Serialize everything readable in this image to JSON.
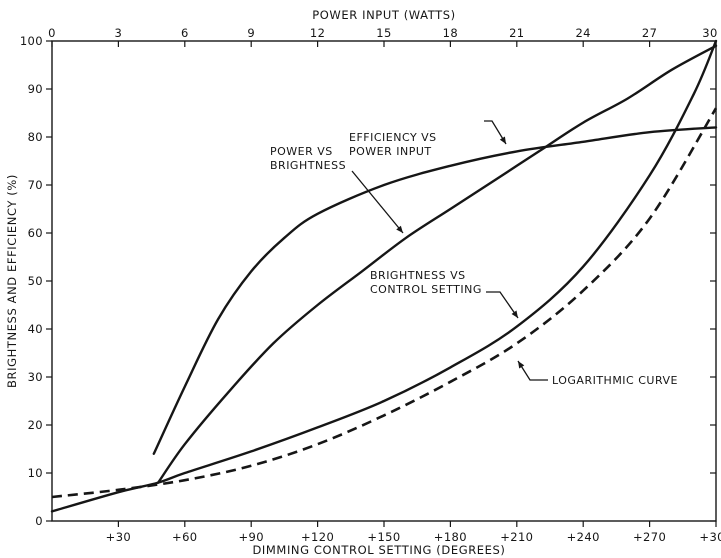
{
  "chart_data": {
    "type": "line",
    "title": "",
    "xlabel": "DIMMING CONTROL SETTING (DEGREES)",
    "x2label": "POWER INPUT (WATTS)",
    "ylabel": "BRIGHTNESS AND EFFICIENCY (%)",
    "xlim": [
      0,
      300
    ],
    "x2lim": [
      0,
      30
    ],
    "ylim": [
      0,
      100
    ],
    "x_ticks": [
      30,
      60,
      90,
      120,
      150,
      180,
      210,
      240,
      270,
      300
    ],
    "x_tick_labels": [
      "+30",
      "+60",
      "+90",
      "+120",
      "+150",
      "+180",
      "+210",
      "+240",
      "+270",
      "+300"
    ],
    "x2_ticks": [
      0,
      3,
      6,
      9,
      12,
      15,
      18,
      21,
      24,
      27,
      30
    ],
    "x2_tick_labels": [
      "0",
      "3",
      "6",
      "9",
      "12",
      "15",
      "18",
      "21",
      "24",
      "27",
      "30"
    ],
    "y_ticks": [
      0,
      10,
      20,
      30,
      40,
      50,
      60,
      70,
      80,
      90,
      100
    ],
    "y_tick_labels": [
      "0",
      "10",
      "20",
      "30",
      "40",
      "50",
      "60",
      "70",
      "80",
      "90",
      "100"
    ],
    "grid": false,
    "series": [
      {
        "name": "EFFICIENCY VS POWER INPUT",
        "axis": "top",
        "style": "solid",
        "x": [
          4.6,
          6,
          7.5,
          9,
          10.5,
          12,
          15,
          18,
          21,
          24,
          27,
          30
        ],
        "y": [
          14,
          28,
          42,
          52,
          59,
          64,
          70,
          74,
          77,
          79,
          81,
          82
        ]
      },
      {
        "name": "POWER VS BRIGHTNESS",
        "axis": "top",
        "style": "solid",
        "x": [
          4.8,
          6,
          8,
          10,
          12,
          14,
          16,
          18,
          20,
          22,
          24,
          26,
          28,
          30
        ],
        "y": [
          8,
          16,
          27,
          37,
          45,
          52,
          59,
          65,
          71,
          77,
          83,
          88,
          94,
          99
        ]
      },
      {
        "name": "BRIGHTNESS VS CONTROL SETTING",
        "axis": "bottom",
        "style": "solid",
        "x": [
          0,
          30,
          48,
          60,
          90,
          120,
          150,
          180,
          210,
          240,
          270,
          290,
          300
        ],
        "y": [
          2,
          6,
          8,
          10,
          14.5,
          19.5,
          25,
          32,
          40.5,
          53,
          72,
          89,
          100
        ]
      },
      {
        "name": "LOGARITHMIC CURVE",
        "axis": "bottom",
        "style": "dashed",
        "x": [
          0,
          30,
          60,
          90,
          120,
          150,
          180,
          210,
          240,
          270,
          300
        ],
        "y": [
          5,
          6.5,
          8.5,
          11.5,
          16,
          22,
          29,
          37,
          48,
          63,
          86
        ]
      }
    ],
    "annotations": [
      {
        "lines": [
          "EFFICIENCY VS",
          "POWER INPUT"
        ],
        "points_to": "EFFICIENCY VS POWER INPUT"
      },
      {
        "lines": [
          "POWER VS",
          "BRIGHTNESS"
        ],
        "points_to": "POWER VS BRIGHTNESS"
      },
      {
        "lines": [
          "BRIGHTNESS VS",
          "CONTROL SETTING"
        ],
        "points_to": "BRIGHTNESS VS CONTROL SETTING"
      },
      {
        "lines": [
          "LOGARITHMIC CURVE"
        ],
        "points_to": "LOGARITHMIC CURVE"
      }
    ],
    "colors": {
      "ink": "#161616",
      "background": "#ffffff"
    }
  }
}
